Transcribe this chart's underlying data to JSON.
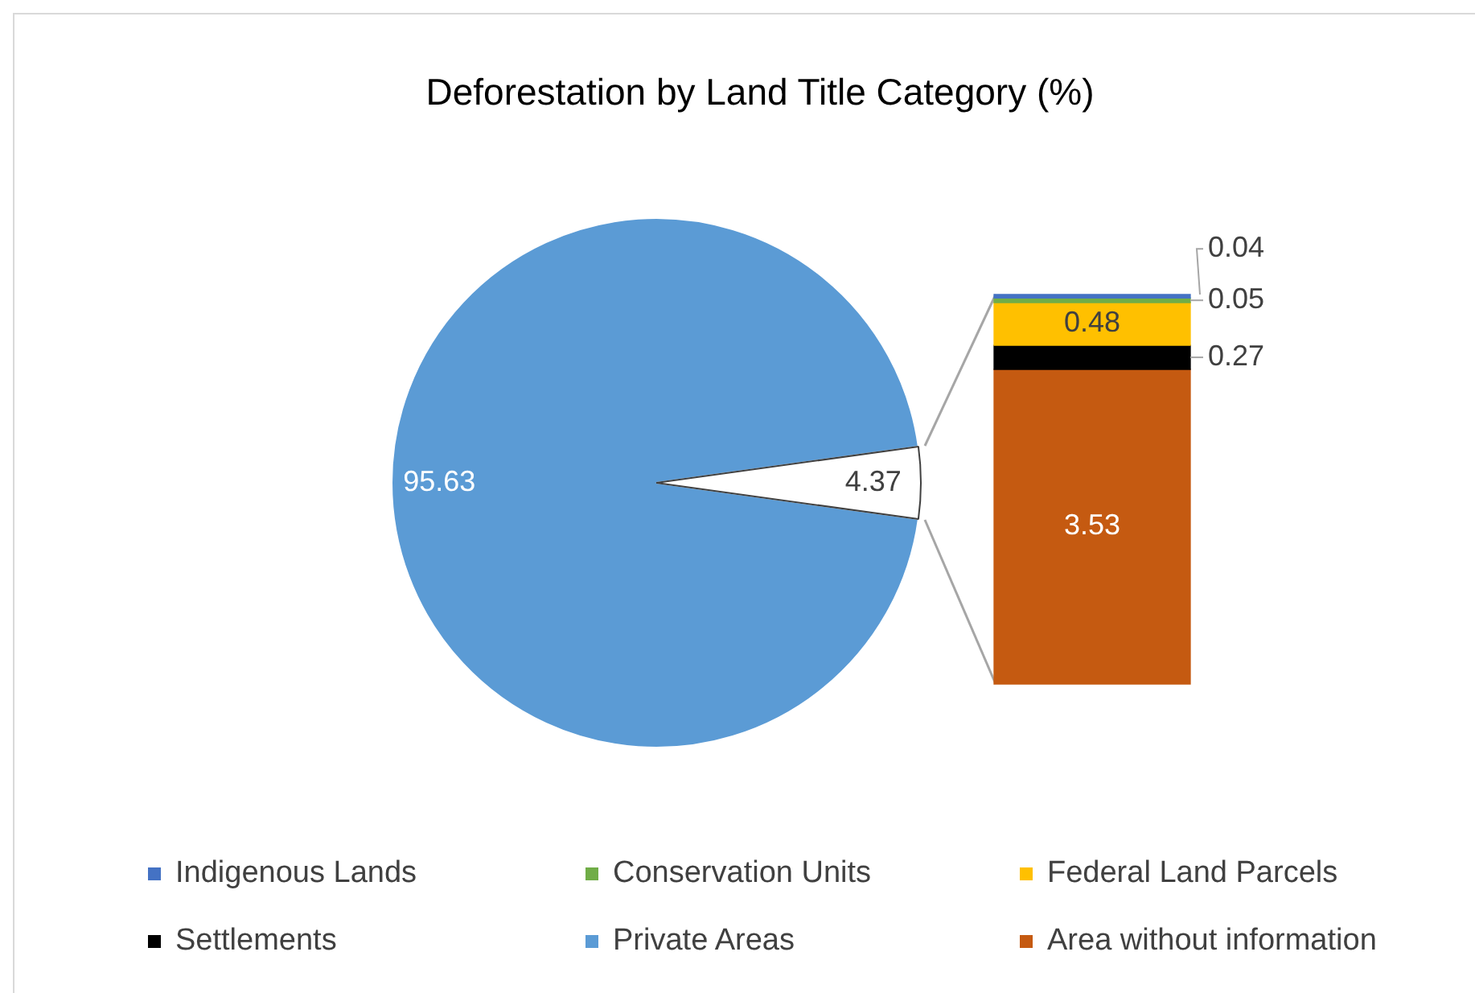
{
  "chart_data": [
    {
      "type": "pie",
      "title": "Deforestation by Land Title Category (%)",
      "categories": [
        "Private Areas",
        null
      ],
      "values": [
        95.63,
        4.37
      ],
      "colors": [
        "#5b9bd5",
        "#ffffff"
      ],
      "data_labels": true,
      "legend": "bottom"
    },
    {
      "type": "bar",
      "stacked": true,
      "categories": [
        null
      ],
      "tick_labels": false,
      "data_labels": true,
      "legend": "bottom",
      "series": [
        {
          "name": "Area without information",
          "color": "#c55a11",
          "values": [
            3.53
          ]
        },
        {
          "name": "Settlements",
          "color": "#000000",
          "values": [
            0.27
          ]
        },
        {
          "name": "Federal Land Parcels",
          "color": "#ffc000",
          "values": [
            0.48
          ]
        },
        {
          "name": "Conservation Units",
          "color": "#70ad47",
          "values": [
            0.05
          ]
        },
        {
          "name": "Indigenous Lands",
          "color": "#4472c4",
          "values": [
            0.04
          ]
        }
      ]
    }
  ]
}
